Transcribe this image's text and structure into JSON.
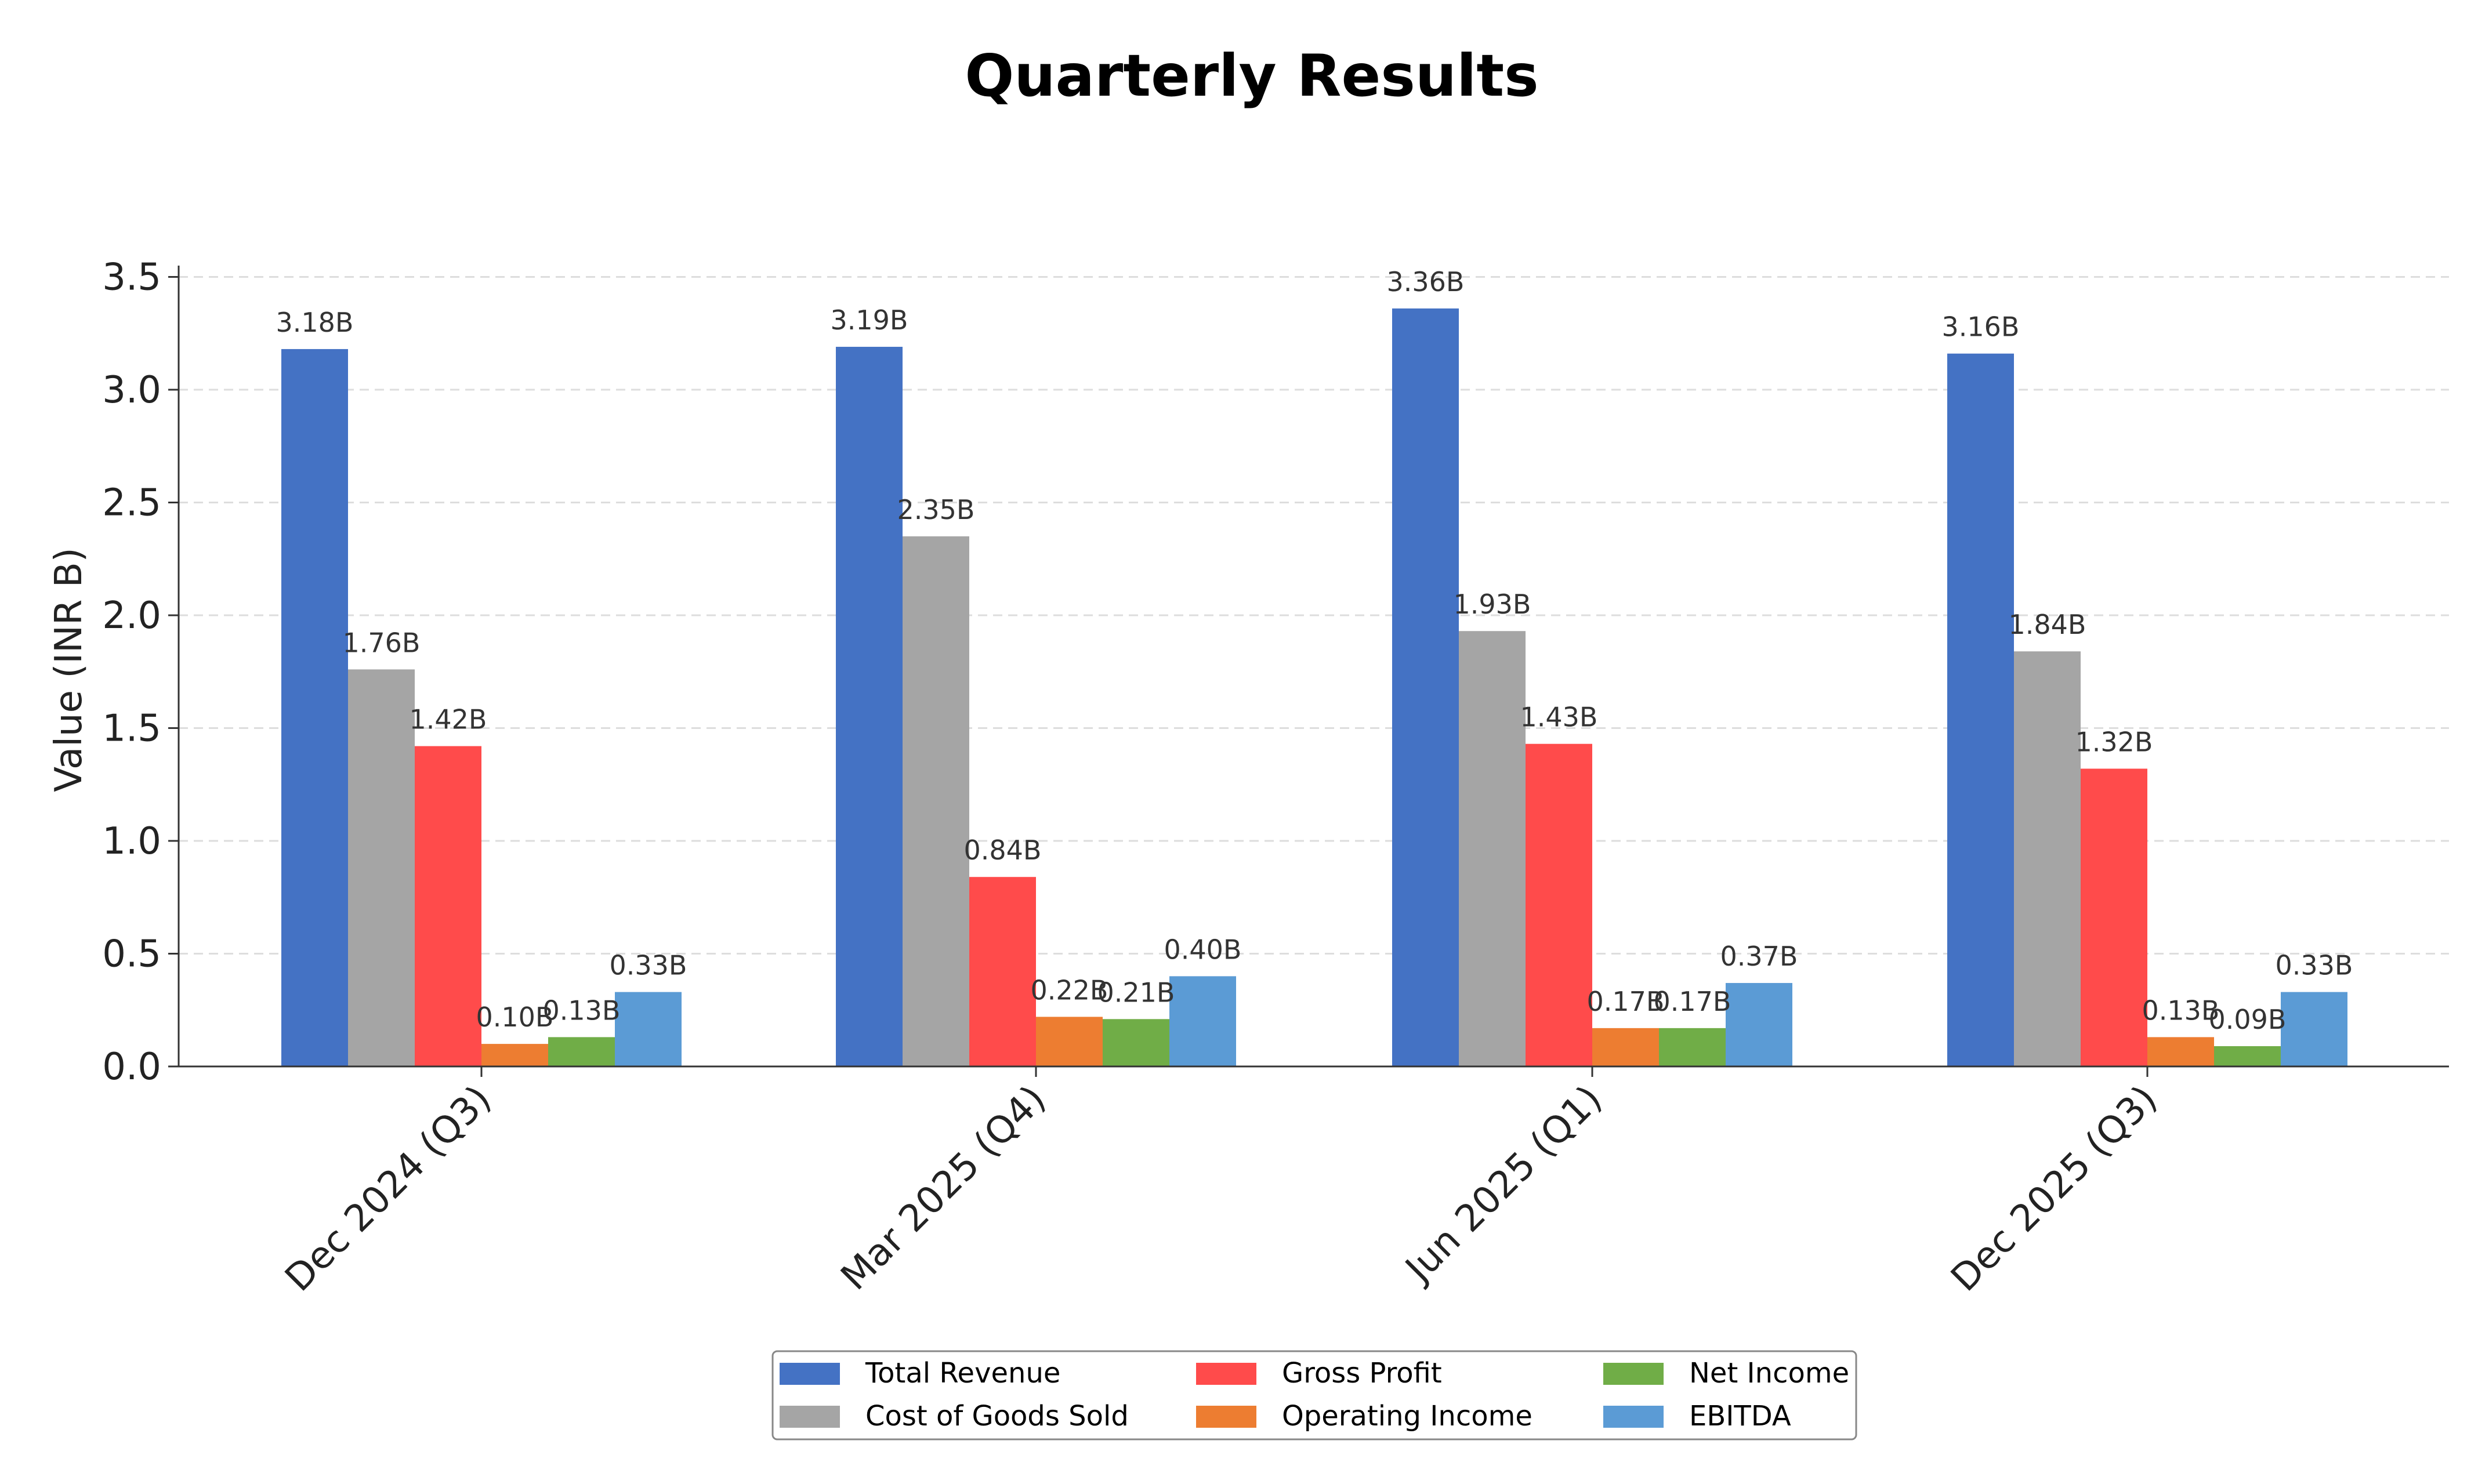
{
  "chart_data": {
    "type": "bar",
    "title": "Quarterly Results",
    "xlabel": "",
    "ylabel": "Value (INR B)",
    "ylim": [
      0,
      3.55
    ],
    "yticks": [
      "0.0",
      "0.5",
      "1.0",
      "1.5",
      "2.0",
      "2.5",
      "3.0",
      "3.5"
    ],
    "ytick_values": [
      0,
      0.5,
      1.0,
      1.5,
      2.0,
      2.5,
      3.0,
      3.5
    ],
    "grid": "horizontal dashed",
    "legend_position": "bottom-center",
    "categories": [
      "Dec 2024 (Q3)",
      "Mar 2025 (Q4)",
      "Jun 2025 (Q1)",
      "Dec 2025 (Q3)"
    ],
    "series": [
      {
        "name": "Total Revenue",
        "color": "#4472C4",
        "values": [
          3.18,
          3.19,
          3.36,
          3.16
        ],
        "labels": [
          "3.18B",
          "3.19B",
          "3.36B",
          "3.16B"
        ]
      },
      {
        "name": "Cost of Goods Sold",
        "color": "#A5A5A5",
        "values": [
          1.76,
          2.35,
          1.93,
          1.84
        ],
        "labels": [
          "1.76B",
          "2.35B",
          "1.93B",
          "1.84B"
        ]
      },
      {
        "name": "Gross Profit",
        "color": "#FF4B4B",
        "values": [
          1.42,
          0.84,
          1.43,
          1.32
        ],
        "labels": [
          "1.42B",
          "0.84B",
          "1.43B",
          "1.32B"
        ]
      },
      {
        "name": "Operating Income",
        "color": "#ED7D31",
        "values": [
          0.1,
          0.22,
          0.17,
          0.13
        ],
        "labels": [
          "0.10B",
          "0.22B",
          "0.17B",
          "0.13B"
        ]
      },
      {
        "name": "Net Income",
        "color": "#70AD47",
        "values": [
          0.13,
          0.21,
          0.17,
          0.09
        ],
        "labels": [
          "0.13B",
          "0.21B",
          "0.17B",
          "0.09B"
        ]
      },
      {
        "name": "EBITDA",
        "color": "#5B9BD5",
        "values": [
          0.33,
          0.4,
          0.37,
          0.33
        ],
        "labels": [
          "0.33B",
          "0.40B",
          "0.37B",
          "0.33B"
        ]
      }
    ]
  }
}
